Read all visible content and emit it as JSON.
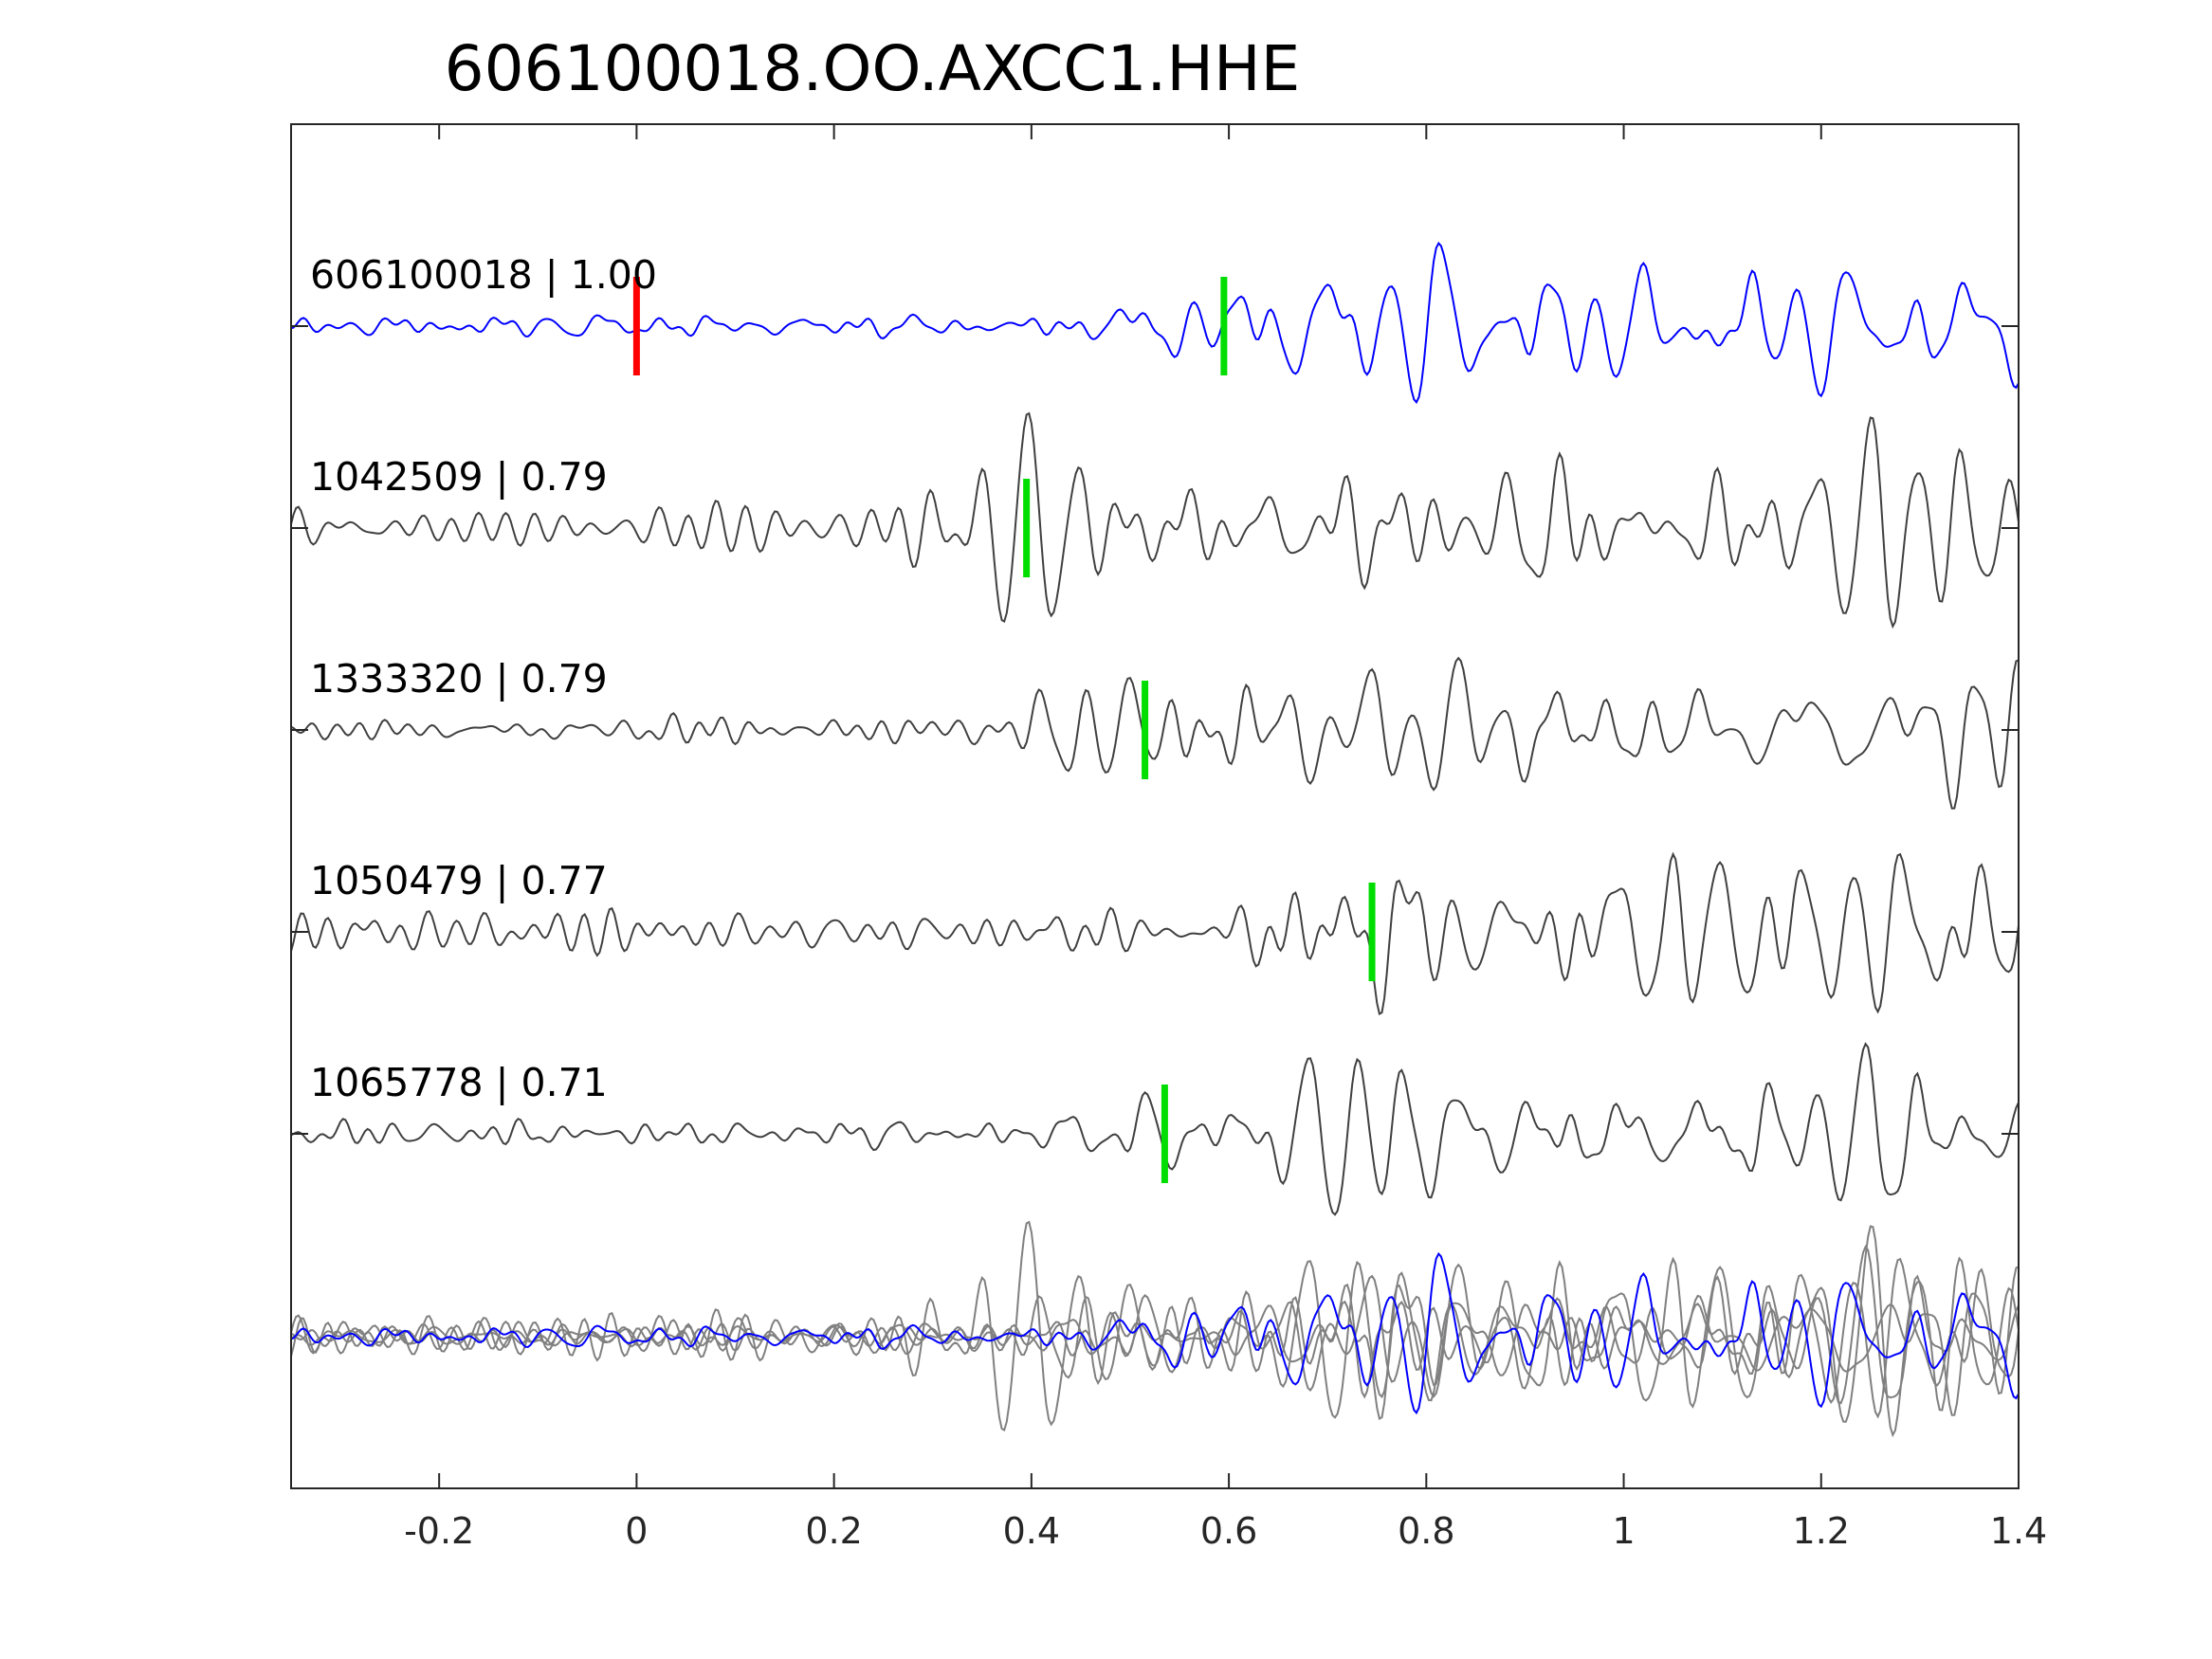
{
  "chart_data": {
    "type": "line",
    "title": "606100018.OO.AXCC1.HHE",
    "xlabel": "",
    "ylabel": "",
    "xlim": [
      -0.35,
      1.4
    ],
    "xticks": [
      -0.2,
      0,
      0.2,
      0.4,
      0.6,
      0.8,
      1,
      1.2,
      1.4
    ],
    "xtick_labels": [
      "-0.2",
      "0",
      "0.2",
      "0.4",
      "0.6",
      "0.8",
      "1",
      "1.2",
      "1.4"
    ],
    "grid": false,
    "reference_pick": {
      "time": 0.0,
      "color": "#ff0000"
    },
    "traces": [
      {
        "id": "606100018",
        "score": "1.00",
        "label": "606100018 | 1.00",
        "color": "#0000ff",
        "pick": 0.595,
        "noise": 0.15,
        "event_amp": 1.0
      },
      {
        "id": "1042509",
        "score": "0.79",
        "label": "1042509 | 0.79",
        "color": "#404040",
        "pick": 0.395,
        "noise": 0.5,
        "event_amp": 0.9
      },
      {
        "id": "1333320",
        "score": "0.79",
        "label": "1333320 | 0.79",
        "color": "#404040",
        "pick": 0.515,
        "noise": 0.25,
        "event_amp": 0.85
      },
      {
        "id": "1050479",
        "score": "0.77",
        "label": "1050479 | 0.77",
        "color": "#404040",
        "pick": 0.745,
        "noise": 0.5,
        "event_amp": 0.9
      },
      {
        "id": "1065778",
        "score": "0.71",
        "label": "1065778 | 0.71",
        "color": "#404040",
        "pick": 0.535,
        "noise": 0.25,
        "event_amp": 0.85
      }
    ],
    "pick_color": "#00dd00",
    "overlay": {
      "reference_color": "#0000ff",
      "others_color": "#808080"
    }
  }
}
